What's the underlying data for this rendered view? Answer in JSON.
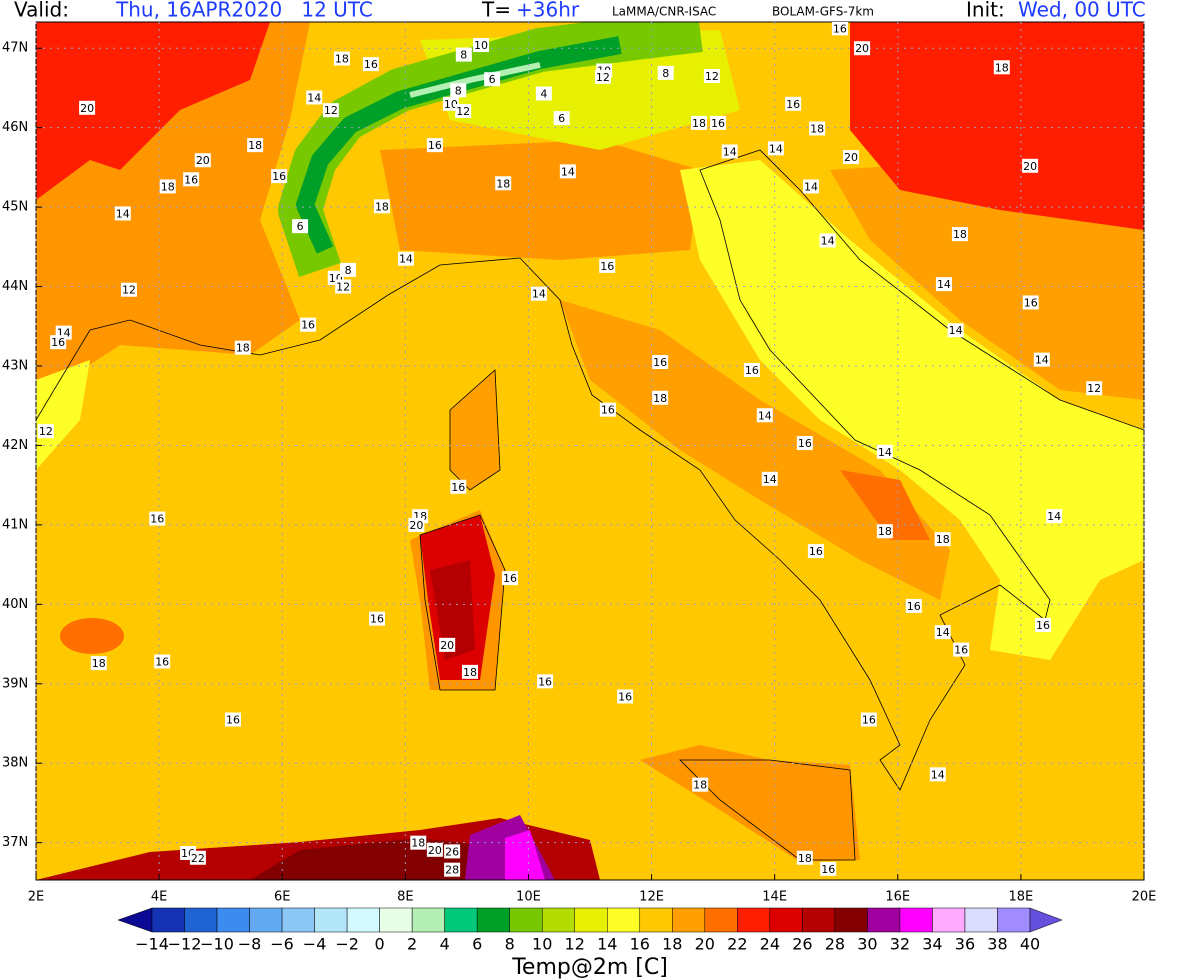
{
  "header": {
    "valid_label": "Valid:",
    "valid_time": "Thu, 16APR2020   12 UTC",
    "step_label": "T=",
    "step": "+36hr",
    "source": "LaMMA/CNR-ISAC",
    "model": "BOLAM-GFS-7km",
    "init_label": "Init:",
    "init_time": "Wed, 00 UTC"
  },
  "map": {
    "lon_range": [
      2,
      20
    ],
    "lat_range": [
      36.53,
      47.33
    ],
    "lon_ticks": [
      {
        "value": 2,
        "label": "2E"
      },
      {
        "value": 4,
        "label": "4E"
      },
      {
        "value": 6,
        "label": "6E"
      },
      {
        "value": 8,
        "label": "8E"
      },
      {
        "value": 10,
        "label": "10E"
      },
      {
        "value": 12,
        "label": "12E"
      },
      {
        "value": 14,
        "label": "14E"
      },
      {
        "value": 16,
        "label": "16E"
      },
      {
        "value": 18,
        "label": "18E"
      },
      {
        "value": 20,
        "label": "20E"
      }
    ],
    "lat_ticks": [
      {
        "value": 37,
        "label": "37N"
      },
      {
        "value": 38,
        "label": "38N"
      },
      {
        "value": 39,
        "label": "39N"
      },
      {
        "value": 40,
        "label": "40N"
      },
      {
        "value": 41,
        "label": "41N"
      },
      {
        "value": 42,
        "label": "42N"
      },
      {
        "value": 43,
        "label": "43N"
      },
      {
        "value": 44,
        "label": "44N"
      },
      {
        "value": 45,
        "label": "45N"
      },
      {
        "value": 46,
        "label": "46N"
      },
      {
        "value": 47,
        "label": "47N"
      }
    ],
    "contour_labels": [
      {
        "lon": 6.97,
        "lat": 46.87,
        "value": 18
      },
      {
        "lon": 7.44,
        "lat": 46.8,
        "value": 16
      },
      {
        "lon": 8.95,
        "lat": 46.92,
        "value": 8
      },
      {
        "lon": 9.23,
        "lat": 47.04,
        "value": 10
      },
      {
        "lon": 11.23,
        "lat": 46.72,
        "value": 10
      },
      {
        "lon": 11.21,
        "lat": 46.64,
        "value": 12
      },
      {
        "lon": 12.23,
        "lat": 46.69,
        "value": 8
      },
      {
        "lon": 12.98,
        "lat": 46.65,
        "value": 12
      },
      {
        "lon": 15.06,
        "lat": 47.25,
        "value": 16
      },
      {
        "lon": 15.42,
        "lat": 47.0,
        "value": 20
      },
      {
        "lon": 17.69,
        "lat": 46.76,
        "value": 18
      },
      {
        "lon": 2.83,
        "lat": 46.25,
        "value": 20
      },
      {
        "lon": 4.71,
        "lat": 45.59,
        "value": 20
      },
      {
        "lon": 5.56,
        "lat": 45.78,
        "value": 18
      },
      {
        "lon": 4.14,
        "lat": 45.26,
        "value": 18
      },
      {
        "lon": 4.52,
        "lat": 45.35,
        "value": 16
      },
      {
        "lon": 3.41,
        "lat": 44.92,
        "value": 14
      },
      {
        "lon": 3.51,
        "lat": 43.96,
        "value": 12
      },
      {
        "lon": 5.95,
        "lat": 45.39,
        "value": 16
      },
      {
        "lon": 6.52,
        "lat": 46.38,
        "value": 14
      },
      {
        "lon": 6.79,
        "lat": 46.22,
        "value": 12
      },
      {
        "lon": 6.29,
        "lat": 44.76,
        "value": 6
      },
      {
        "lon": 6.87,
        "lat": 44.11,
        "value": 10
      },
      {
        "lon": 6.99,
        "lat": 44.0,
        "value": 12
      },
      {
        "lon": 7.07,
        "lat": 44.21,
        "value": 8
      },
      {
        "lon": 8.48,
        "lat": 45.78,
        "value": 16
      },
      {
        "lon": 9.59,
        "lat": 45.3,
        "value": 18
      },
      {
        "lon": 10.64,
        "lat": 45.45,
        "value": 14
      },
      {
        "lon": 7.62,
        "lat": 45.01,
        "value": 18
      },
      {
        "lon": 8.01,
        "lat": 44.35,
        "value": 14
      },
      {
        "lon": 8.86,
        "lat": 46.47,
        "value": 8
      },
      {
        "lon": 8.74,
        "lat": 46.3,
        "value": 10
      },
      {
        "lon": 8.94,
        "lat": 46.21,
        "value": 12
      },
      {
        "lon": 9.41,
        "lat": 46.61,
        "value": 6
      },
      {
        "lon": 10.25,
        "lat": 46.43,
        "value": 4
      },
      {
        "lon": 10.54,
        "lat": 46.12,
        "value": 6
      },
      {
        "lon": 13.08,
        "lat": 46.06,
        "value": 16
      },
      {
        "lon": 12.77,
        "lat": 46.06,
        "value": 18
      },
      {
        "lon": 13.27,
        "lat": 45.7,
        "value": 14
      },
      {
        "lon": 14.3,
        "lat": 46.3,
        "value": 16
      },
      {
        "lon": 14.69,
        "lat": 45.99,
        "value": 18
      },
      {
        "lon": 14.02,
        "lat": 45.74,
        "value": 14
      },
      {
        "lon": 15.24,
        "lat": 45.63,
        "value": 20
      },
      {
        "lon": 18.15,
        "lat": 45.52,
        "value": 20
      },
      {
        "lon": 14.59,
        "lat": 45.26,
        "value": 14
      },
      {
        "lon": 14.86,
        "lat": 44.58,
        "value": 14
      },
      {
        "lon": 17.01,
        "lat": 44.66,
        "value": 18
      },
      {
        "lon": 16.75,
        "lat": 44.03,
        "value": 14
      },
      {
        "lon": 18.16,
        "lat": 43.8,
        "value": 16
      },
      {
        "lon": 16.94,
        "lat": 43.45,
        "value": 14
      },
      {
        "lon": 18.34,
        "lat": 43.08,
        "value": 14
      },
      {
        "lon": 19.19,
        "lat": 42.72,
        "value": 12
      },
      {
        "lon": 11.28,
        "lat": 44.26,
        "value": 16
      },
      {
        "lon": 10.17,
        "lat": 43.91,
        "value": 14
      },
      {
        "lon": 6.42,
        "lat": 43.52,
        "value": 16
      },
      {
        "lon": 5.36,
        "lat": 43.23,
        "value": 18
      },
      {
        "lon": 2.45,
        "lat": 43.42,
        "value": 14
      },
      {
        "lon": 2.36,
        "lat": 43.3,
        "value": 16
      },
      {
        "lon": 2.16,
        "lat": 42.18,
        "value": 12
      },
      {
        "lon": 12.14,
        "lat": 43.05,
        "value": 16
      },
      {
        "lon": 13.63,
        "lat": 42.95,
        "value": 16
      },
      {
        "lon": 12.14,
        "lat": 42.6,
        "value": 18
      },
      {
        "lon": 11.29,
        "lat": 42.45,
        "value": 16
      },
      {
        "lon": 13.84,
        "lat": 42.38,
        "value": 14
      },
      {
        "lon": 14.49,
        "lat": 42.03,
        "value": 16
      },
      {
        "lon": 15.79,
        "lat": 41.92,
        "value": 14
      },
      {
        "lon": 13.92,
        "lat": 41.58,
        "value": 14
      },
      {
        "lon": 15.79,
        "lat": 40.92,
        "value": 18
      },
      {
        "lon": 16.73,
        "lat": 40.82,
        "value": 18
      },
      {
        "lon": 18.54,
        "lat": 41.11,
        "value": 14
      },
      {
        "lon": 14.67,
        "lat": 40.67,
        "value": 16
      },
      {
        "lon": 16.26,
        "lat": 39.98,
        "value": 16
      },
      {
        "lon": 16.73,
        "lat": 39.65,
        "value": 14
      },
      {
        "lon": 17.03,
        "lat": 39.43,
        "value": 16
      },
      {
        "lon": 18.36,
        "lat": 39.74,
        "value": 16
      },
      {
        "lon": 15.53,
        "lat": 38.55,
        "value": 16
      },
      {
        "lon": 16.65,
        "lat": 37.86,
        "value": 14
      },
      {
        "lon": 12.79,
        "lat": 37.73,
        "value": 18
      },
      {
        "lon": 14.49,
        "lat": 36.81,
        "value": 18
      },
      {
        "lon": 14.87,
        "lat": 36.67,
        "value": 16
      },
      {
        "lon": 11.57,
        "lat": 38.84,
        "value": 16
      },
      {
        "lon": 10.27,
        "lat": 39.03,
        "value": 16
      },
      {
        "lon": 8.86,
        "lat": 41.48,
        "value": 16
      },
      {
        "lon": 8.24,
        "lat": 41.11,
        "value": 18
      },
      {
        "lon": 8.18,
        "lat": 41.0,
        "value": 20
      },
      {
        "lon": 9.7,
        "lat": 40.33,
        "value": 16
      },
      {
        "lon": 8.68,
        "lat": 39.49,
        "value": 20
      },
      {
        "lon": 9.05,
        "lat": 39.15,
        "value": 18
      },
      {
        "lon": 3.97,
        "lat": 41.08,
        "value": 16
      },
      {
        "lon": 7.54,
        "lat": 39.82,
        "value": 16
      },
      {
        "lon": 4.05,
        "lat": 39.28,
        "value": 16
      },
      {
        "lon": 3.02,
        "lat": 39.26,
        "value": 18
      },
      {
        "lon": 5.2,
        "lat": 38.55,
        "value": 16
      },
      {
        "lon": 4.47,
        "lat": 36.87,
        "value": 16
      },
      {
        "lon": 4.63,
        "lat": 36.81,
        "value": 22
      },
      {
        "lon": 8.21,
        "lat": 37.0,
        "value": 18
      },
      {
        "lon": 8.48,
        "lat": 36.91,
        "value": 20
      },
      {
        "lon": 8.76,
        "lat": 36.89,
        "value": 26
      },
      {
        "lon": 8.76,
        "lat": 36.66,
        "value": 28
      }
    ]
  },
  "colorbar": {
    "title": "Temp@2m [C]",
    "levels": [
      {
        "value": -14,
        "label": "−14"
      },
      {
        "value": -12,
        "label": "−12"
      },
      {
        "value": -10,
        "label": "−10"
      },
      {
        "value": -8,
        "label": "−8"
      },
      {
        "value": -6,
        "label": "−6"
      },
      {
        "value": -4,
        "label": "−4"
      },
      {
        "value": -2,
        "label": "−2"
      },
      0,
      2,
      4,
      6,
      8,
      10,
      12,
      14,
      16,
      18,
      20,
      22,
      24,
      26,
      28,
      30,
      32,
      34,
      36,
      38,
      40
    ],
    "colors": [
      "#0a0a96",
      "#1432b4",
      "#1e64d2",
      "#3c8cf0",
      "#64aaf0",
      "#8cc8f5",
      "#b4e6fa",
      "#d2faff",
      "#e6ffe6",
      "#b4f0b4",
      "#00c878",
      "#00a028",
      "#78c800",
      "#b4dc00",
      "#e6f000",
      "#ffff28",
      "#ffc800",
      "#ffa000",
      "#ff6e00",
      "#ff1e00",
      "#dc0000",
      "#b40000",
      "#820000",
      "#a000a0",
      "#ff00ff",
      "#ffaaff",
      "#dcdcff",
      "#a08cff",
      "#6450dc"
    ]
  }
}
